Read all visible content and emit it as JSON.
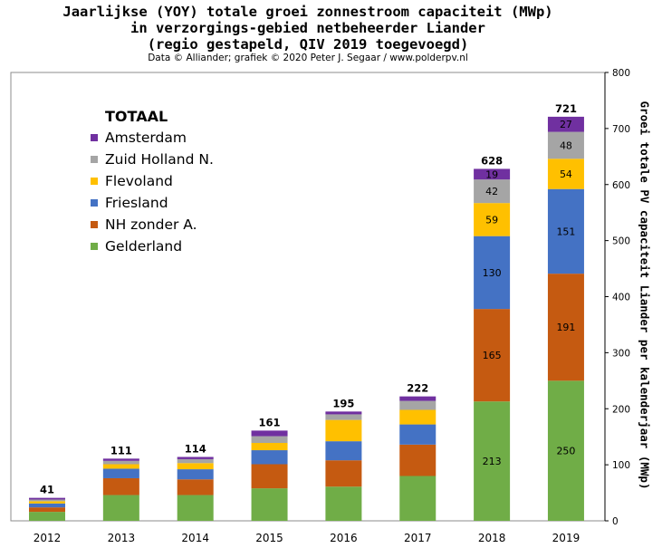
{
  "chart_data": {
    "type": "bar",
    "stacked": true,
    "title": [
      "Jaarlijkse (YOY) totale groei zonnestroom capaciteit (MWp)",
      "in verzorgings-gebied netbeheerder Liander",
      "(regio gestapeld, QIV 2019 toegevoegd)"
    ],
    "subtitle": "Data © Alliander; grafiek © 2020 Peter J. Segaar / www.polderpv.nl",
    "xlabel": "",
    "ylabel": "Groei totale PV capaciteit Liander per kalenderjaar (MWp)",
    "ylim": [
      0,
      800
    ],
    "yticks": [
      0,
      100,
      200,
      300,
      400,
      500,
      600,
      700,
      800
    ],
    "grid": false,
    "legend_title": "TOTAAL",
    "legend_position": "top-left",
    "categories": [
      "2012",
      "2013",
      "2014",
      "2015",
      "2016",
      "2017",
      "2018",
      "2019"
    ],
    "totals": [
      41,
      111,
      114,
      161,
      195,
      222,
      628,
      721
    ],
    "series": [
      {
        "name": "Gelderland",
        "color": "#70ad47",
        "values": [
          16,
          46,
          46,
          58,
          61,
          80,
          213,
          250
        ]
      },
      {
        "name": "NH zonder A.",
        "color": "#c55a11",
        "values": [
          8,
          30,
          28,
          43,
          47,
          56,
          165,
          191
        ]
      },
      {
        "name": "Friesland",
        "color": "#4472c4",
        "values": [
          7,
          17,
          18,
          25,
          34,
          36,
          130,
          151
        ]
      },
      {
        "name": "Flevoland",
        "color": "#ffc000",
        "values": [
          4,
          8,
          11,
          13,
          38,
          26,
          59,
          54
        ]
      },
      {
        "name": "Zuid Holland N.",
        "color": "#a5a5a5",
        "values": [
          3,
          6,
          7,
          12,
          10,
          16,
          42,
          48
        ]
      },
      {
        "name": "Amsterdam",
        "color": "#7030a0",
        "values": [
          3,
          4,
          4,
          10,
          5,
          8,
          19,
          27
        ]
      }
    ],
    "labeled_bars": [
      "2018",
      "2019"
    ]
  }
}
